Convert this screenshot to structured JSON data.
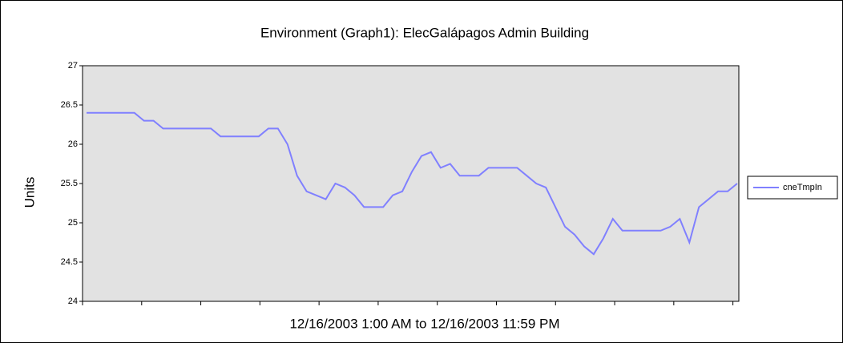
{
  "chart_data": {
    "type": "line",
    "title": "Environment (Graph1): ElecGalápagos  Admin Building",
    "xlabel": "12/16/2003 1:00 AM to 12/16/2003 11:59 PM",
    "ylabel": "Units",
    "categories": [
      null,
      null,
      null,
      null,
      null,
      null,
      null,
      null,
      null,
      null,
      null,
      null,
      null,
      null,
      null,
      null,
      null,
      null,
      null,
      null,
      null,
      null,
      null,
      null,
      null,
      null,
      null,
      null,
      null,
      null,
      null,
      null,
      null,
      null,
      null,
      null,
      null,
      null,
      null,
      null,
      null,
      null,
      null,
      null,
      null,
      null,
      null,
      null,
      null,
      null,
      null,
      null,
      null,
      null,
      null,
      null,
      null,
      null,
      null,
      null,
      null,
      null,
      null,
      null,
      null,
      null,
      null,
      null,
      null
    ],
    "series": [
      {
        "name": "cneTmpIn",
        "color": "#8080ff",
        "values": [
          26.4,
          26.4,
          26.4,
          26.4,
          26.4,
          26.4,
          26.3,
          26.3,
          26.2,
          26.2,
          26.2,
          26.2,
          26.2,
          26.2,
          26.1,
          26.1,
          26.1,
          26.1,
          26.1,
          26.2,
          26.2,
          26.0,
          25.6,
          25.4,
          25.35,
          25.3,
          25.5,
          25.45,
          25.35,
          25.2,
          25.2,
          25.2,
          25.35,
          25.4,
          25.65,
          25.85,
          25.9,
          25.7,
          25.75,
          25.6,
          25.6,
          25.6,
          25.7,
          25.7,
          25.7,
          25.7,
          25.6,
          25.5,
          25.45,
          25.2,
          24.95,
          24.85,
          24.7,
          24.6,
          24.8,
          25.05,
          24.9,
          24.9,
          24.9,
          24.9,
          24.9,
          24.95,
          25.05,
          24.75,
          25.2,
          25.3,
          25.4,
          25.4,
          25.5
        ]
      }
    ],
    "ylim": [
      24,
      27
    ],
    "yticks": [
      24,
      24.5,
      25,
      25.5,
      26,
      26.5,
      27
    ],
    "legend": "right"
  }
}
